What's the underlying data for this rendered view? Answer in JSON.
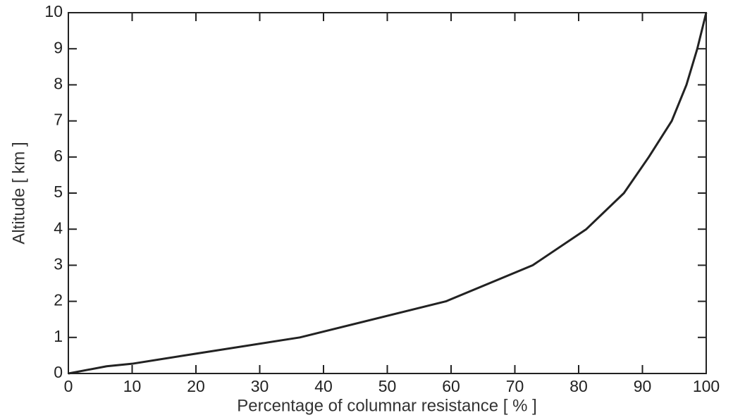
{
  "chart_data": {
    "type": "line",
    "x_label": "Percentage of columnar resistance [ % ]",
    "y_label": "Altitude [ km ]",
    "series": [
      {
        "color": "#222222",
        "x": [
          0,
          6,
          10,
          20,
          36.3,
          59.2,
          72.8,
          81.2,
          87.1,
          91,
          94.6,
          96.9,
          98.6,
          100
        ],
        "values": [
          0,
          0.2,
          0.27,
          0.55,
          1,
          2,
          3,
          4,
          5,
          6,
          7,
          8,
          9,
          10
        ]
      }
    ],
    "xlim": [
      0,
      100
    ],
    "xticks": [
      0,
      10,
      20,
      30,
      40,
      50,
      60,
      70,
      80,
      90,
      100
    ],
    "ylim": [
      0,
      10
    ],
    "yticks": [
      0,
      1,
      2,
      3,
      4,
      5,
      6,
      7,
      8,
      9,
      10
    ]
  }
}
